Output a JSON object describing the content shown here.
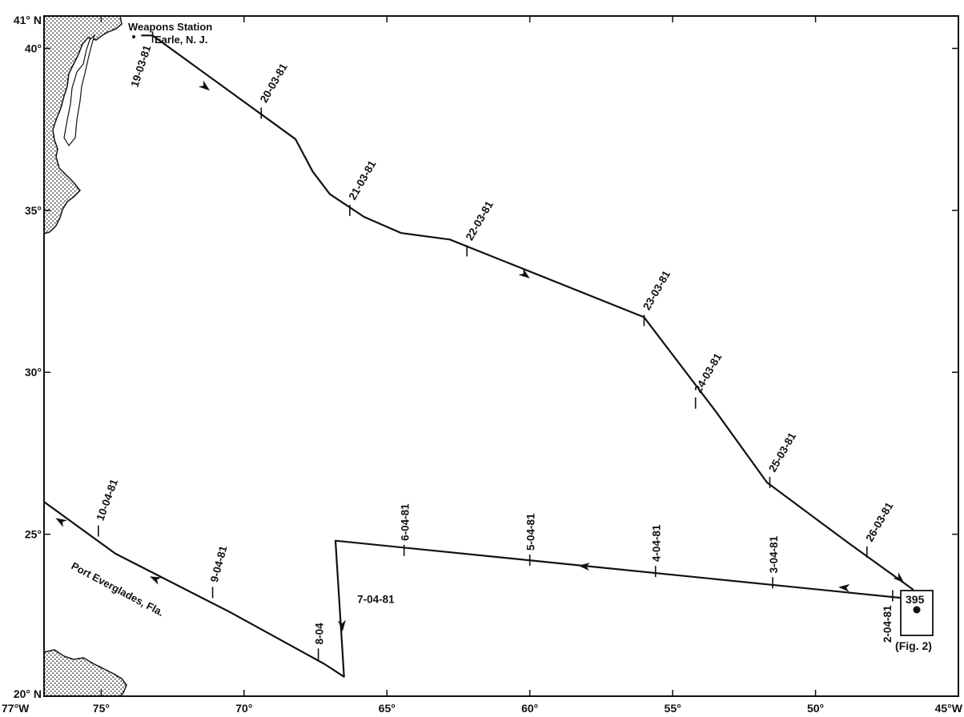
{
  "map": {
    "axes": {
      "lon_range": [
        -77,
        -45
      ],
      "lat_range": [
        20,
        41
      ],
      "x_ticks": [
        {
          "lon": -77,
          "label": "77°W"
        },
        {
          "lon": -75,
          "label": "75°"
        },
        {
          "lon": -70,
          "label": "70°"
        },
        {
          "lon": -65,
          "label": "65°"
        },
        {
          "lon": -60,
          "label": "60°"
        },
        {
          "lon": -55,
          "label": "55°"
        },
        {
          "lon": -50,
          "label": "50°"
        },
        {
          "lon": -45,
          "label": "45°W"
        }
      ],
      "y_ticks": [
        {
          "lat": 41,
          "label": "41° N"
        },
        {
          "lat": 40,
          "label": "40°"
        },
        {
          "lat": 35,
          "label": "35°"
        },
        {
          "lat": 30,
          "label": "30°"
        },
        {
          "lat": 25,
          "label": "25°"
        },
        {
          "lat": 20,
          "label": "20° N"
        }
      ]
    },
    "places": {
      "weapons_station_line1": "Weapons Station",
      "weapons_station_line2": "Earle, N. J.",
      "port_everglades": "Port Everglades, Fla.",
      "site_number": "395",
      "site_fig": "(Fig. 2)"
    },
    "track": [
      [
        -73.6,
        40.4
      ],
      [
        -73.2,
        40.4
      ],
      [
        -68.2,
        37.2
      ],
      [
        -67.6,
        36.2
      ],
      [
        -67.0,
        35.5
      ],
      [
        -65.8,
        34.8
      ],
      [
        -64.5,
        34.3
      ],
      [
        -62.8,
        34.1
      ],
      [
        -56.0,
        31.7
      ],
      [
        -53.5,
        28.8
      ],
      [
        -51.7,
        26.6
      ],
      [
        -48.8,
        24.7
      ],
      [
        -46.6,
        23.3
      ],
      [
        -46.6,
        23.0
      ],
      [
        -66.8,
        24.8
      ],
      [
        -66.5,
        20.6
      ],
      [
        -67.2,
        21.0
      ],
      [
        -70.5,
        22.6
      ],
      [
        -74.5,
        24.4
      ],
      [
        -77.0,
        26.0
      ]
    ],
    "arrows": [
      {
        "lon": -71.2,
        "lat": 38.7,
        "dir": -38
      },
      {
        "lon": -60.0,
        "lat": 32.9,
        "dir": -37
      },
      {
        "lon": -46.9,
        "lat": 23.5,
        "dir": -42
      },
      {
        "lon": -49.2,
        "lat": 23.37,
        "dir": 175
      },
      {
        "lon": -58.3,
        "lat": 24.03,
        "dir": 175
      },
      {
        "lon": -66.55,
        "lat": 22.0,
        "dir": -86
      },
      {
        "lon": -73.3,
        "lat": 23.7,
        "dir": 155
      },
      {
        "lon": -76.6,
        "lat": 25.5,
        "dir": 150
      }
    ],
    "date_marks": [
      {
        "label": "19-03-81",
        "lon": -73.2,
        "lat": 40.35,
        "angle": -72,
        "side": "left"
      },
      {
        "label": "20-03-81",
        "lon": -69.4,
        "lat": 38.0,
        "angle": -60,
        "side": "right"
      },
      {
        "label": "21-03-81",
        "lon": -66.3,
        "lat": 35.0,
        "angle": -60,
        "side": "right"
      },
      {
        "label": "22-03-81",
        "lon": -62.2,
        "lat": 33.75,
        "angle": -60,
        "side": "right"
      },
      {
        "label": "23-03-81",
        "lon": -56.0,
        "lat": 31.6,
        "angle": -60,
        "side": "right"
      },
      {
        "label": "24-03-81",
        "lon": -54.2,
        "lat": 29.05,
        "angle": -60,
        "side": "right"
      },
      {
        "label": "25-03-81",
        "lon": -51.6,
        "lat": 26.6,
        "angle": -60,
        "side": "right"
      },
      {
        "label": "26-03-81",
        "lon": -48.2,
        "lat": 24.45,
        "angle": -60,
        "side": "right"
      },
      {
        "label": "2-04-81",
        "lon": -47.3,
        "lat": 23.1,
        "angle": -90,
        "side": "left"
      },
      {
        "label": "3-04-81",
        "lon": -51.5,
        "lat": 23.5,
        "angle": -90,
        "side": "right"
      },
      {
        "label": "4-04-81",
        "lon": -55.6,
        "lat": 23.85,
        "angle": -90,
        "side": "right"
      },
      {
        "label": "5-04-81",
        "lon": -60.0,
        "lat": 24.2,
        "angle": -90,
        "side": "right"
      },
      {
        "label": "6-04-81",
        "lon": -64.4,
        "lat": 24.5,
        "angle": -90,
        "side": "right"
      },
      {
        "label": "7-04-81",
        "lon": -66.6,
        "lat": 23.0,
        "angle": 0,
        "side": "label-only"
      },
      {
        "label": "8-04",
        "lon": -67.4,
        "lat": 21.3,
        "angle": -90,
        "side": "right"
      },
      {
        "label": "9-04-81",
        "lon": -71.1,
        "lat": 23.2,
        "angle": -75,
        "side": "right"
      },
      {
        "label": "10-04-81",
        "lon": -75.1,
        "lat": 25.1,
        "angle": -70,
        "side": "right"
      }
    ]
  }
}
